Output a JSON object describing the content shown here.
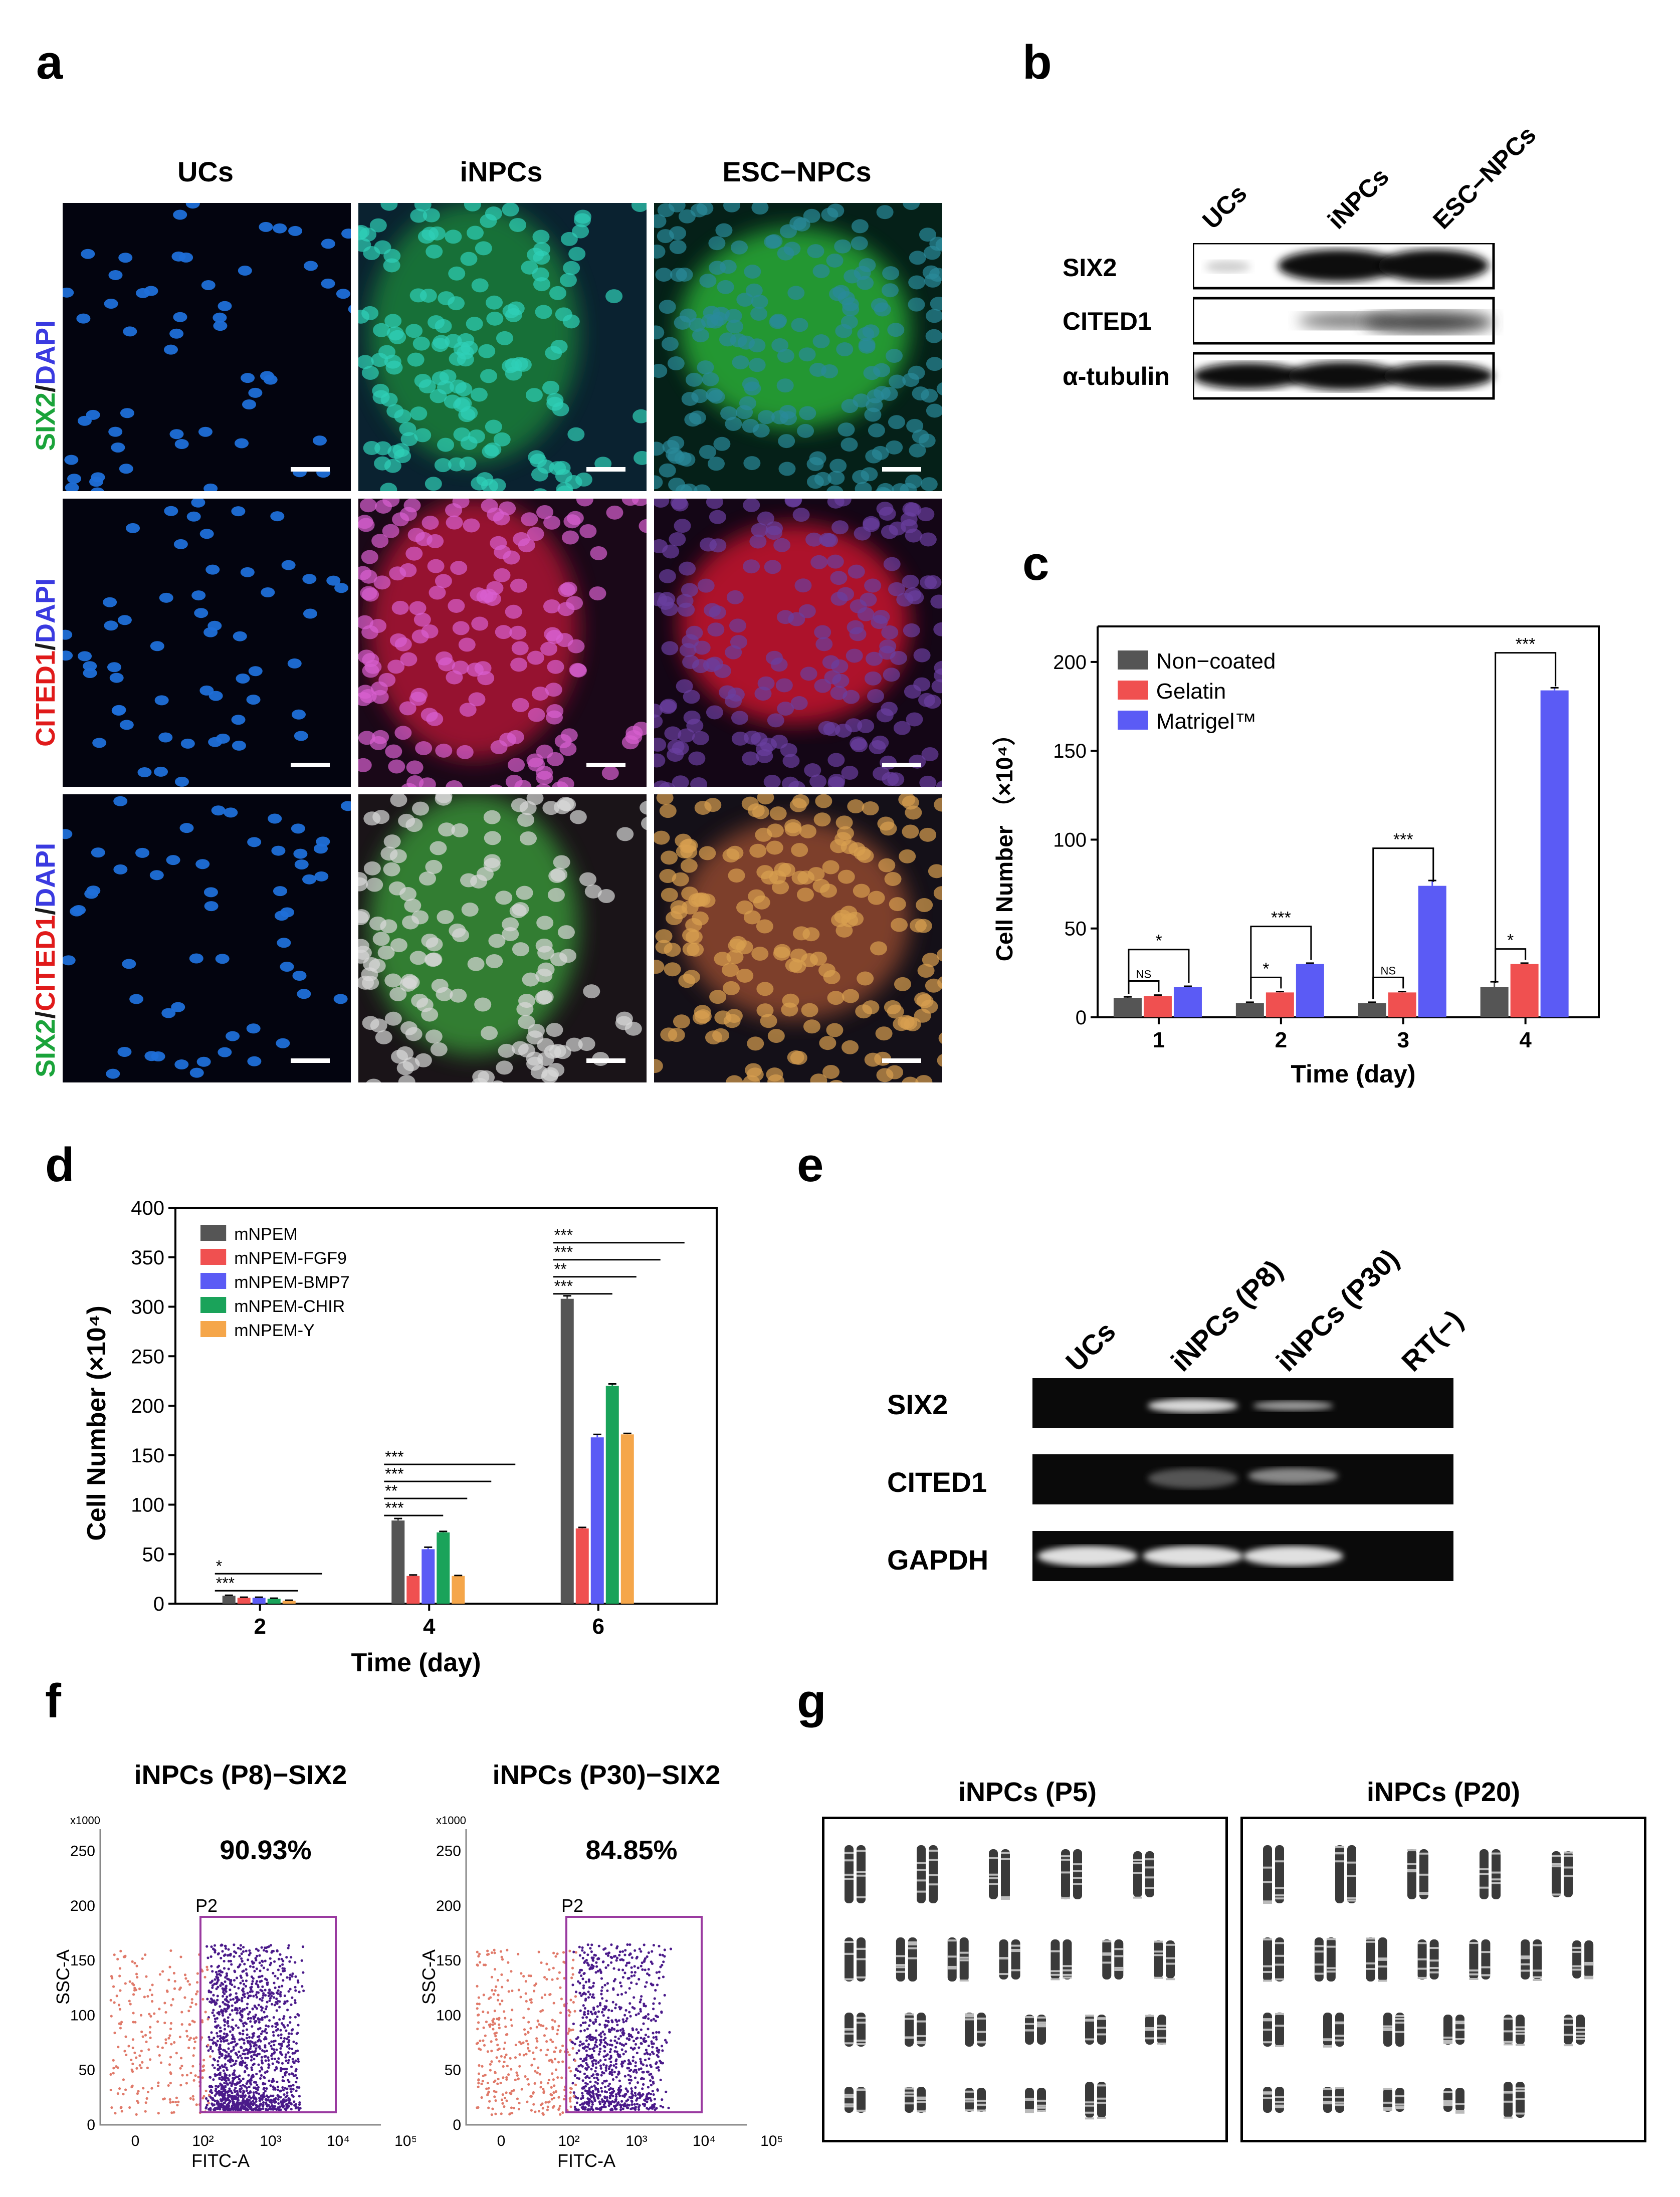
{
  "panel_letters": {
    "a": "a",
    "b": "b",
    "c": "c",
    "d": "d",
    "e": "e",
    "f": "f",
    "g": "g"
  },
  "panel_a": {
    "columns": [
      "UCs",
      "iNPCs",
      "ESC−NPCs"
    ],
    "rows": [
      {
        "parts": [
          {
            "text": "SIX2",
            "color": "#1aa33a"
          },
          {
            "text": "/",
            "color": "#1a1a1a"
          },
          {
            "text": "DAPI",
            "color": "#3a3ae0"
          }
        ]
      },
      {
        "parts": [
          {
            "text": "CITED1",
            "color": "#e01a1a"
          },
          {
            "text": "/",
            "color": "#1a1a1a"
          },
          {
            "text": "DAPI",
            "color": "#3a3ae0"
          }
        ]
      },
      {
        "parts": [
          {
            "text": "SIX2",
            "color": "#1aa33a"
          },
          {
            "text": "/",
            "color": "#1a1a1a"
          },
          {
            "text": "CITED1",
            "color": "#e01a1a"
          },
          {
            "text": "/",
            "color": "#1a1a1a"
          },
          {
            "text": "DAPI",
            "color": "#3a3ae0"
          }
        ]
      }
    ]
  },
  "panel_b": {
    "lanes": [
      "UCs",
      "iNPCs",
      "ESC−NPCs"
    ],
    "bands": [
      "SIX2",
      "CITED1",
      "α-tubulin"
    ]
  },
  "panel_e": {
    "lanes": [
      "UCs",
      "iNPCs (P8)",
      "iNPCs (P30)",
      "RT(−)"
    ],
    "bands": [
      "SIX2",
      "CITED1",
      "GAPDH"
    ]
  },
  "panel_f": {
    "plots": [
      {
        "title": "iNPCs (P8)−SIX2",
        "percent": "90.93%",
        "gate": "P2",
        "xlabel": "FITC-A",
        "ylabel": "SSC-A",
        "ymult": "x1000",
        "yticks": [
          "0",
          "50",
          "100",
          "150",
          "200",
          "250"
        ],
        "xticks": [
          "0",
          "10²",
          "10³",
          "10⁴",
          "10⁵"
        ]
      },
      {
        "title": "iNPCs (P30)−SIX2",
        "percent": "84.85%",
        "gate": "P2",
        "xlabel": "FITC-A",
        "ylabel": "SSC-A",
        "ymult": "x1000",
        "yticks": [
          "0",
          "50",
          "100",
          "150",
          "200",
          "250"
        ],
        "xticks": [
          "0",
          "10²",
          "10³",
          "10⁴",
          "10⁵"
        ]
      }
    ]
  },
  "panel_g": {
    "titles": [
      "iNPCs (P5)",
      "iNPCs (P20)"
    ]
  },
  "chart_data": [
    {
      "id": "c",
      "type": "bar",
      "categories": [
        "1",
        "2",
        "3",
        "4"
      ],
      "xlabel": "Time (day)",
      "ylabel": "Cell Number （×10⁴）",
      "ylim": [
        0,
        220
      ],
      "yticks": [
        0,
        50,
        100,
        150,
        200
      ],
      "legend_position": "top-left",
      "series": [
        {
          "name": "Non−coated",
          "color": "#555555",
          "values": [
            11,
            8,
            8,
            17
          ],
          "errors": [
            0.5,
            0.5,
            0.5,
            3
          ]
        },
        {
          "name": "Gelatin",
          "color": "#f05050",
          "values": [
            12,
            14,
            14,
            30
          ],
          "errors": [
            0.5,
            0.5,
            0.5,
            0.5
          ]
        },
        {
          "name": "Matrigel™",
          "color": "#5b5bf5",
          "values": [
            17,
            30,
            74,
            184
          ],
          "errors": [
            0.5,
            0.5,
            3,
            1.5
          ]
        }
      ],
      "significance": [
        {
          "day": "1",
          "pairs": [
            {
              "label": "NS",
              "from": 0,
              "to": 1
            },
            {
              "label": "*",
              "from": 0,
              "to": 2
            }
          ]
        },
        {
          "day": "2",
          "pairs": [
            {
              "label": "*",
              "from": 0,
              "to": 1
            },
            {
              "label": "***",
              "from": 0,
              "to": 2
            }
          ]
        },
        {
          "day": "3",
          "pairs": [
            {
              "label": "NS",
              "from": 0,
              "to": 1
            },
            {
              "label": "***",
              "from": 0,
              "to": 2
            }
          ]
        },
        {
          "day": "4",
          "pairs": [
            {
              "label": "*",
              "from": 0,
              "to": 1
            },
            {
              "label": "***",
              "from": 0,
              "to": 2
            }
          ]
        }
      ]
    },
    {
      "id": "d",
      "type": "bar",
      "categories": [
        "2",
        "4",
        "6"
      ],
      "xlabel": "Time (day)",
      "ylabel": "Cell Number (×10⁴)",
      "ylim": [
        0,
        400
      ],
      "yticks": [
        0,
        50,
        100,
        150,
        200,
        250,
        300,
        350,
        400
      ],
      "legend_position": "top-left",
      "series": [
        {
          "name": "mNPEM",
          "color": "#555555",
          "values": [
            8,
            84,
            308
          ],
          "errors": [
            0.5,
            2,
            3
          ]
        },
        {
          "name": "mNPEM-FGF9",
          "color": "#f05050",
          "values": [
            6,
            28,
            76
          ],
          "errors": [
            0.5,
            1,
            1
          ]
        },
        {
          "name": "mNPEM-BMP7",
          "color": "#5b5bf5",
          "values": [
            6,
            55,
            168
          ],
          "errors": [
            0.5,
            2,
            3
          ]
        },
        {
          "name": "mNPEM-CHIR",
          "color": "#1aa35a",
          "values": [
            5,
            72,
            220
          ],
          "errors": [
            0.5,
            1,
            2
          ]
        },
        {
          "name": "mNPEM-Y",
          "color": "#f5a64a",
          "values": [
            3,
            28,
            171
          ],
          "errors": [
            0.5,
            0.5,
            1
          ]
        }
      ],
      "significance": [
        {
          "day": "2",
          "labels": [
            "***",
            "*"
          ]
        },
        {
          "day": "4",
          "labels": [
            "***",
            "**",
            "***",
            "***"
          ]
        },
        {
          "day": "6",
          "labels": [
            "***",
            "**",
            "***",
            "***"
          ]
        }
      ]
    }
  ]
}
